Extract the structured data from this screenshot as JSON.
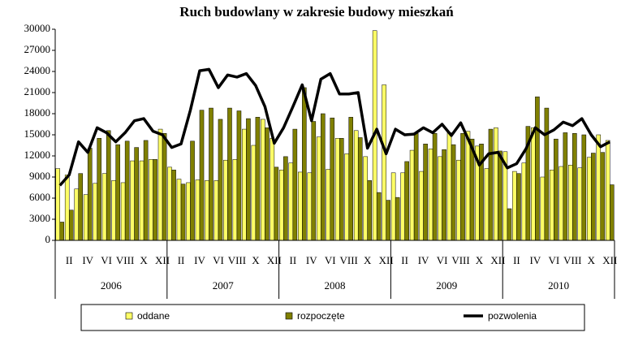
{
  "chart_data": {
    "type": "bar-line",
    "title": "Ruch budowlany w zakresie budowy mieszkań",
    "categories": [
      null,
      "II",
      null,
      "IV",
      null,
      "VI",
      null,
      "VIII",
      null,
      "X",
      null,
      "XII",
      null,
      "II",
      null,
      "IV",
      null,
      "VI",
      null,
      "VIII",
      null,
      "X",
      null,
      "XII",
      null,
      "II",
      null,
      "IV",
      null,
      "VI",
      null,
      "VIII",
      null,
      "X",
      null,
      "XII",
      null,
      "II",
      null,
      "IV",
      null,
      "VI",
      null,
      "VIII",
      null,
      "X",
      null,
      "XII",
      null,
      "II",
      null,
      "IV",
      null,
      "VI",
      null,
      "VIII",
      null,
      "X",
      null,
      "XII"
    ],
    "years": [
      "2006",
      "2007",
      "2008",
      "2009",
      "2010"
    ],
    "series": [
      {
        "name": "oddane",
        "kind": "bar",
        "color": "#ffff66",
        "values": [
          10200,
          9300,
          7300,
          6500,
          8100,
          9500,
          8500,
          8200,
          11300,
          11300,
          11500,
          15800,
          10400,
          8700,
          8200,
          8600,
          8500,
          8500,
          11400,
          11500,
          15800,
          13500,
          17200,
          14500,
          10000,
          11000,
          9700,
          9600,
          14700,
          10100,
          14500,
          12300,
          15600,
          11900,
          29800,
          22100,
          9600,
          9600,
          12800,
          9800,
          13000,
          11900,
          15300,
          11400,
          15500,
          13400,
          10200,
          16000,
          12600,
          9800,
          11000,
          16000,
          9000,
          10000,
          10500,
          10700,
          10300,
          11800,
          15000,
          14200
        ]
      },
      {
        "name": "rozpoczęte",
        "kind": "bar",
        "color": "#808000",
        "values": [
          2600,
          4300,
          9500,
          13100,
          14500,
          15600,
          13600,
          14100,
          13200,
          14200,
          11500,
          15200,
          10000,
          8000,
          14100,
          18500,
          18800,
          17200,
          18800,
          18400,
          17300,
          17500,
          16000,
          10400,
          11900,
          15800,
          21700,
          16900,
          18000,
          17400,
          14500,
          17500,
          14600,
          8500,
          6800,
          5700,
          6100,
          11200,
          15200,
          13700,
          15200,
          12900,
          13600,
          15200,
          14400,
          13700,
          15800,
          12700,
          4500,
          9500,
          16200,
          20400,
          18800,
          14400,
          15300,
          15200,
          15000,
          12400,
          12500,
          7900
        ]
      },
      {
        "name": "pozwolenia",
        "kind": "line",
        "color": "#000000",
        "values": [
          7800,
          9300,
          14000,
          12500,
          16000,
          15300,
          14000,
          15300,
          17000,
          17300,
          15500,
          15000,
          13200,
          13700,
          18500,
          24100,
          24300,
          21700,
          23500,
          23200,
          23700,
          22000,
          19000,
          13800,
          16000,
          19000,
          22100,
          17000,
          22900,
          23700,
          20800,
          20800,
          21000,
          13100,
          15800,
          12300,
          15800,
          15000,
          15100,
          16000,
          15300,
          16500,
          14900,
          16700,
          13800,
          10700,
          12300,
          12500,
          10300,
          10900,
          13000,
          16000,
          15000,
          15700,
          16800,
          16300,
          17300,
          15000,
          13300,
          14000
        ]
      }
    ],
    "ylim": [
      0,
      30000
    ],
    "yticks": [
      0,
      3000,
      6000,
      9000,
      12000,
      15000,
      18000,
      21000,
      24000,
      27000,
      30000
    ]
  }
}
